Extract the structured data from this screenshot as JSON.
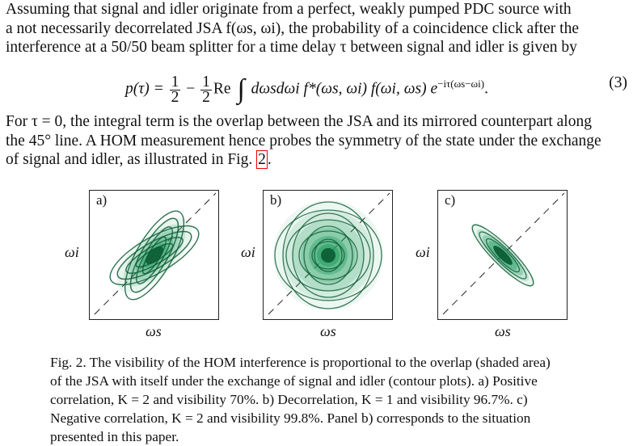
{
  "para1": {
    "lines": [
      "Assuming that signal and idler originate from a perfect, weakly pumped PDC source with",
      "a not necessarily decorrelated JSA f(ωs, ωi), the probability of a coincidence click after the",
      "interference at a 50/50 beam splitter for a time delay τ between signal and idler is given by"
    ]
  },
  "equation": {
    "lhs": "p(τ) =",
    "half_num": "1",
    "half_den": "2",
    "minus": "−",
    "re": "Re",
    "integral": "∫",
    "integrand": "dωsdωi f*(ωs, ωi) f(ωi, ωs) e",
    "exponent": "−iτ(ωs−ωi)",
    "end": ".",
    "number": "(3)"
  },
  "para2": {
    "lines": [
      "For τ = 0, the integral term is the overlap between the JSA and its mirrored counterpart along",
      "the 45° line. A HOM measurement hence probes the symmetry of the state under the exchange",
      "of signal and idler, as illustrated in Fig. "
    ],
    "ref": "2",
    "tail": "."
  },
  "figure": {
    "panels": [
      {
        "label": "a)",
        "correlation": "positive",
        "K": 2,
        "visibility_percent": 70
      },
      {
        "label": "b)",
        "correlation": "none",
        "K": 1,
        "visibility_percent": 96.7
      },
      {
        "label": "c)",
        "correlation": "negative",
        "K": 2,
        "visibility_percent": 99.8
      }
    ],
    "ylabel": "ωi",
    "xlabel": "ωs",
    "colors": {
      "fill": "#1a9b5c",
      "contour": "#0b5a32",
      "diagonal": "#222222"
    }
  },
  "caption": {
    "lines": [
      "Fig. 2. The visibility of the HOM interference is proportional to the overlap (shaded area)",
      "of the JSA with itself under the exchange of signal and idler (contour plots). a) Positive",
      "correlation, K = 2 and visibility 70%. b) Decorrelation, K = 1 and visibility 96.7%. c)",
      "Negative correlation, K = 2 and visibility 99.8%. Panel b) corresponds to the situation",
      "presented in this paper."
    ]
  }
}
